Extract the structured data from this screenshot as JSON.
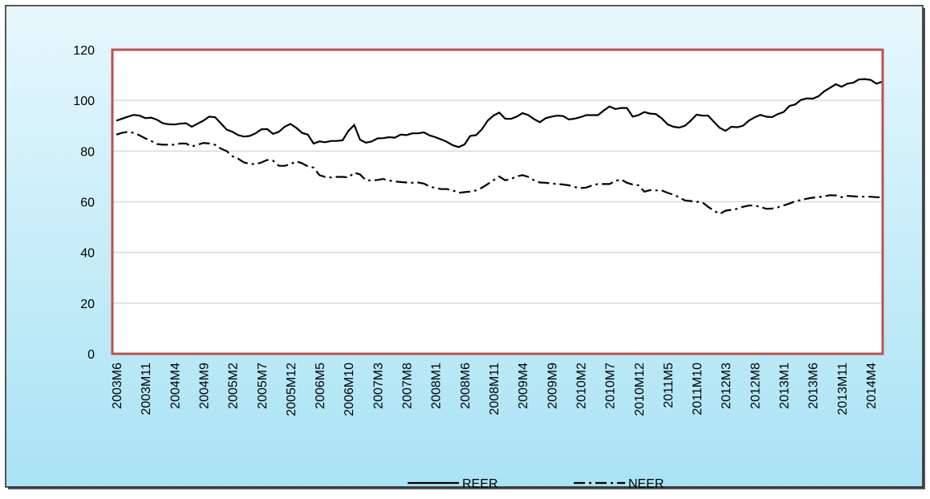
{
  "chart_data": {
    "type": "line",
    "categories": [
      "2003M6",
      null,
      null,
      null,
      null,
      "2003M11",
      null,
      null,
      null,
      null,
      "2004M4",
      null,
      null,
      null,
      null,
      "2004M9",
      null,
      null,
      null,
      null,
      "2005M2",
      null,
      null,
      null,
      null,
      "2005M7",
      null,
      null,
      null,
      null,
      "2005M12",
      null,
      null,
      null,
      null,
      "2006M5",
      null,
      null,
      null,
      null,
      "2006M10",
      null,
      null,
      null,
      null,
      "2007M3",
      null,
      null,
      null,
      null,
      "2007M8",
      null,
      null,
      null,
      null,
      "2008M1",
      null,
      null,
      null,
      null,
      "2008M6",
      null,
      null,
      null,
      null,
      "2008M11",
      null,
      null,
      null,
      null,
      "2009M4",
      null,
      null,
      null,
      null,
      "2009M9",
      null,
      null,
      null,
      null,
      "2010M2",
      null,
      null,
      null,
      null,
      "2010M7",
      null,
      null,
      null,
      null,
      "2010M12",
      null,
      null,
      null,
      null,
      "2011M5",
      null,
      null,
      null,
      null,
      "2011M10",
      null,
      null,
      null,
      null,
      "2012M3",
      null,
      null,
      null,
      null,
      "2012M8",
      null,
      null,
      null,
      null,
      "2013M1",
      null,
      null,
      null,
      null,
      "2013M6",
      null,
      null,
      null,
      null,
      "2013M11",
      null,
      null,
      null,
      null,
      "2014M4",
      null,
      null
    ],
    "series": [
      {
        "name": "REER",
        "color": "#000000",
        "dash": "solid",
        "values": [
          92,
          92.8,
          93.6,
          94.3,
          94,
          93,
          93.2,
          92.4,
          91,
          90.6,
          90.5,
          90.8,
          91,
          89.6,
          90.8,
          92,
          93.6,
          93.4,
          91,
          88.5,
          87.6,
          86.3,
          85.7,
          86,
          87,
          88.6,
          88.7,
          86.8,
          87.6,
          89.6,
          90.7,
          89.2,
          87.2,
          86.5,
          83,
          83.8,
          83.5,
          84,
          84,
          84.3,
          88,
          90.3,
          84.5,
          83.3,
          83.8,
          85,
          85.1,
          85.5,
          85.3,
          86.5,
          86.3,
          87,
          87,
          87.4,
          86.2,
          85.5,
          84.6,
          83.6,
          82.3,
          81.6,
          82.6,
          86,
          86.3,
          88.6,
          92,
          94,
          95.2,
          92.8,
          92.7,
          93.6,
          95,
          94.2,
          92.6,
          91.4,
          93,
          93.6,
          94,
          93.8,
          92.5,
          92.8,
          93.4,
          94.2,
          94.2,
          94.2,
          96,
          97.6,
          96.6,
          97,
          97,
          93.6,
          94.2,
          95.4,
          94.8,
          94.6,
          92.9,
          90.6,
          89.6,
          89.3,
          90,
          92,
          94.4,
          94,
          94,
          91.5,
          89.2,
          88,
          89.6,
          89.4,
          90,
          92,
          93.3,
          94.3,
          93.6,
          93.4,
          94.6,
          95.4,
          97.8,
          98.4,
          100.2,
          100.8,
          100.7,
          101.6,
          103.6,
          105,
          106.4,
          105.4,
          106.6,
          107,
          108.3,
          108.4,
          108.1,
          106.6,
          107.4
        ]
      },
      {
        "name": "NEER",
        "color": "#000000",
        "dash": "dashdot",
        "values": [
          86.5,
          87.2,
          87.6,
          87.2,
          86.2,
          85,
          84,
          82.8,
          82.5,
          82.5,
          82.5,
          83,
          83,
          81.8,
          82.5,
          83.2,
          83,
          82.5,
          81,
          80,
          78,
          77,
          75.5,
          75,
          74.8,
          75.5,
          76.5,
          76.2,
          74.2,
          74.2,
          74.8,
          76,
          75.2,
          74,
          73.5,
          70.5,
          69.8,
          69.6,
          69.8,
          69.8,
          69.6,
          71.5,
          70.8,
          68.5,
          68.4,
          68.6,
          69,
          68.4,
          68,
          67.8,
          67.6,
          67.5,
          67.6,
          67.2,
          66,
          65.4,
          65,
          65,
          64.5,
          63.5,
          63.8,
          64,
          64.5,
          65.5,
          67,
          68.5,
          70,
          68.5,
          69,
          70,
          70.5,
          69.8,
          68.5,
          67.6,
          67.5,
          67.2,
          67,
          66.8,
          66.5,
          65.8,
          65.4,
          65.6,
          66.5,
          67,
          67,
          67,
          68.2,
          68.8,
          67.5,
          66.8,
          66.5,
          64,
          64.6,
          64.5,
          64.5,
          63.5,
          62.8,
          61.8,
          60.5,
          60.3,
          60,
          59.8,
          58,
          56.5,
          55.2,
          56.5,
          56.8,
          57.2,
          58,
          58.5,
          58.5,
          58,
          57.2,
          57.3,
          57.8,
          58.5,
          59.3,
          60.2,
          60.7,
          61.2,
          61.6,
          61.8,
          62.2,
          62.6,
          62.5,
          61.8,
          62.3,
          62.2,
          62,
          62,
          62,
          61.8,
          61.8
        ]
      }
    ],
    "ylim": [
      0,
      120
    ],
    "yticks": [
      0,
      20,
      40,
      60,
      80,
      100,
      120
    ],
    "grid": true,
    "legend": "bottom",
    "plot_border_color": "#c0504d"
  }
}
